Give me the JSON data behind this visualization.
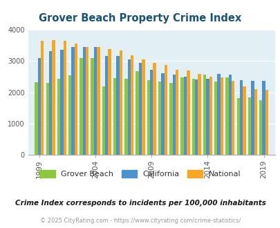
{
  "title": "Grover Beach Property Crime Index",
  "subtitle": "Crime Index corresponds to incidents per 100,000 inhabitants",
  "footer": "© 2025 CityRating.com - https://www.cityrating.com/crime-statistics/",
  "years": [
    1999,
    2000,
    2001,
    2002,
    2003,
    2004,
    2005,
    2006,
    2007,
    2008,
    2009,
    2010,
    2011,
    2012,
    2013,
    2014,
    2015,
    2016,
    2017,
    2018,
    2019
  ],
  "grover_beach": [
    2330,
    2290,
    2440,
    2550,
    3100,
    3100,
    2180,
    2450,
    2430,
    2680,
    2390,
    2340,
    2310,
    2480,
    2430,
    2560,
    2350,
    2470,
    1810,
    1830,
    1760
  ],
  "california": [
    3100,
    3310,
    3350,
    3440,
    3440,
    3440,
    3150,
    3160,
    3040,
    2950,
    2720,
    2620,
    2570,
    2510,
    2420,
    2440,
    2590,
    2560,
    2390,
    2370,
    2370
  ],
  "national": [
    3640,
    3660,
    3650,
    3550,
    3450,
    3440,
    3390,
    3330,
    3190,
    3040,
    2950,
    2880,
    2730,
    2700,
    2580,
    2500,
    2480,
    2360,
    2180,
    2110,
    2090
  ],
  "colors": {
    "grover_beach": "#8dc63f",
    "california": "#4d91cf",
    "national": "#f5a623",
    "background": "#e2f0f5",
    "title": "#1a5276"
  },
  "ylim": [
    0,
    4000
  ],
  "yticks": [
    0,
    1000,
    2000,
    3000,
    4000
  ],
  "xtick_labels": [
    "1999",
    "2004",
    "2009",
    "2014",
    "2019"
  ],
  "xtick_year_positions": [
    0,
    5,
    10,
    15,
    20
  ]
}
